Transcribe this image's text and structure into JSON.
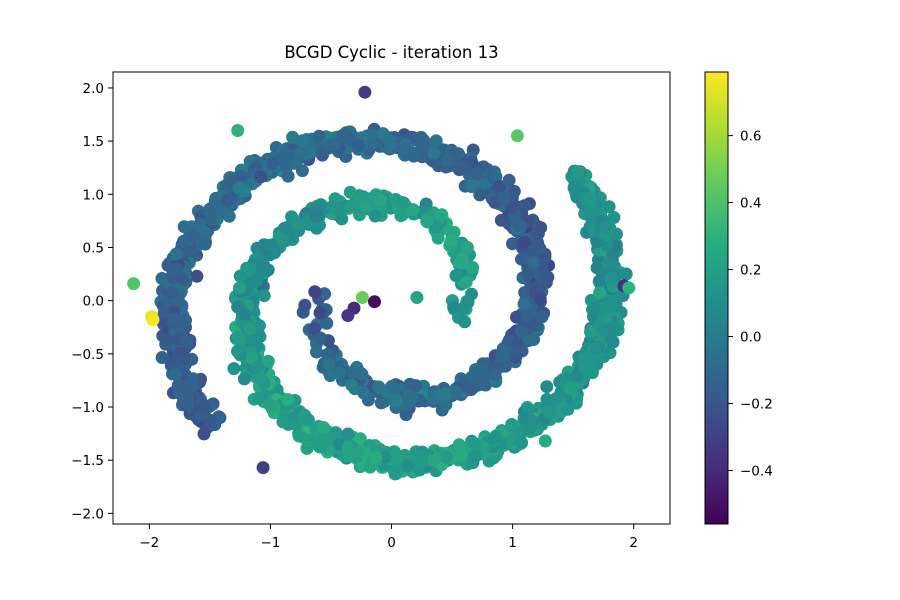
{
  "chart_data": {
    "type": "scatter",
    "title": "BCGD Cyclic - iteration 13",
    "xlabel": "",
    "ylabel": "",
    "xlim": [
      -2.3,
      2.3
    ],
    "ylim": [
      -2.1,
      2.15
    ],
    "x_ticks": [
      -2,
      -1,
      0,
      1,
      2
    ],
    "x_tick_labels": [
      "−2",
      "−1",
      "0",
      "1",
      "2"
    ],
    "y_ticks": [
      2.0,
      1.5,
      1.0,
      0.5,
      0.0,
      -0.5,
      -1.0,
      -1.5,
      -2.0
    ],
    "y_tick_labels": [
      "2.0",
      "1.5",
      "1.0",
      "0.5",
      "0.0",
      "−0.5",
      "−1.0",
      "−1.5",
      "−2.0"
    ],
    "grid": false,
    "legend": "none",
    "colormap": "viridis",
    "color_range": [
      -0.56,
      0.79
    ],
    "colorbar_ticks": [
      0.6,
      0.4,
      0.2,
      0.0,
      -0.2,
      -0.4
    ],
    "colorbar_tick_labels": [
      "0.6",
      "0.4",
      "0.2",
      "0.0",
      "−0.2",
      "−0.4"
    ],
    "description": "two interleaved spiral arms of points, colored by value",
    "points": [
      {
        "x": -2.13,
        "y": 0.16,
        "c": 0.42
      },
      {
        "x": -1.98,
        "y": -0.15,
        "c": 0.74
      },
      {
        "x": -1.97,
        "y": -0.18,
        "c": 0.78
      },
      {
        "x": -0.24,
        "y": 0.03,
        "c": 0.48
      },
      {
        "x": -0.14,
        "y": -0.01,
        "c": -0.52
      },
      {
        "x": -0.31,
        "y": -0.07,
        "c": -0.4
      },
      {
        "x": -0.36,
        "y": -0.14,
        "c": -0.36
      },
      {
        "x": 1.04,
        "y": 1.55,
        "c": 0.44
      },
      {
        "x": -1.27,
        "y": 1.6,
        "c": 0.3
      },
      {
        "x": 1.92,
        "y": 0.14,
        "c": -0.38
      },
      {
        "x": 1.96,
        "y": 0.12,
        "c": 0.3
      },
      {
        "x": -1.06,
        "y": -1.57,
        "c": -0.3
      },
      {
        "x": 1.27,
        "y": -1.32,
        "c": 0.26
      },
      {
        "x": -0.22,
        "y": 1.96,
        "c": -0.32
      },
      {
        "x": 0.21,
        "y": 0.03,
        "c": 0.22
      }
    ]
  }
}
